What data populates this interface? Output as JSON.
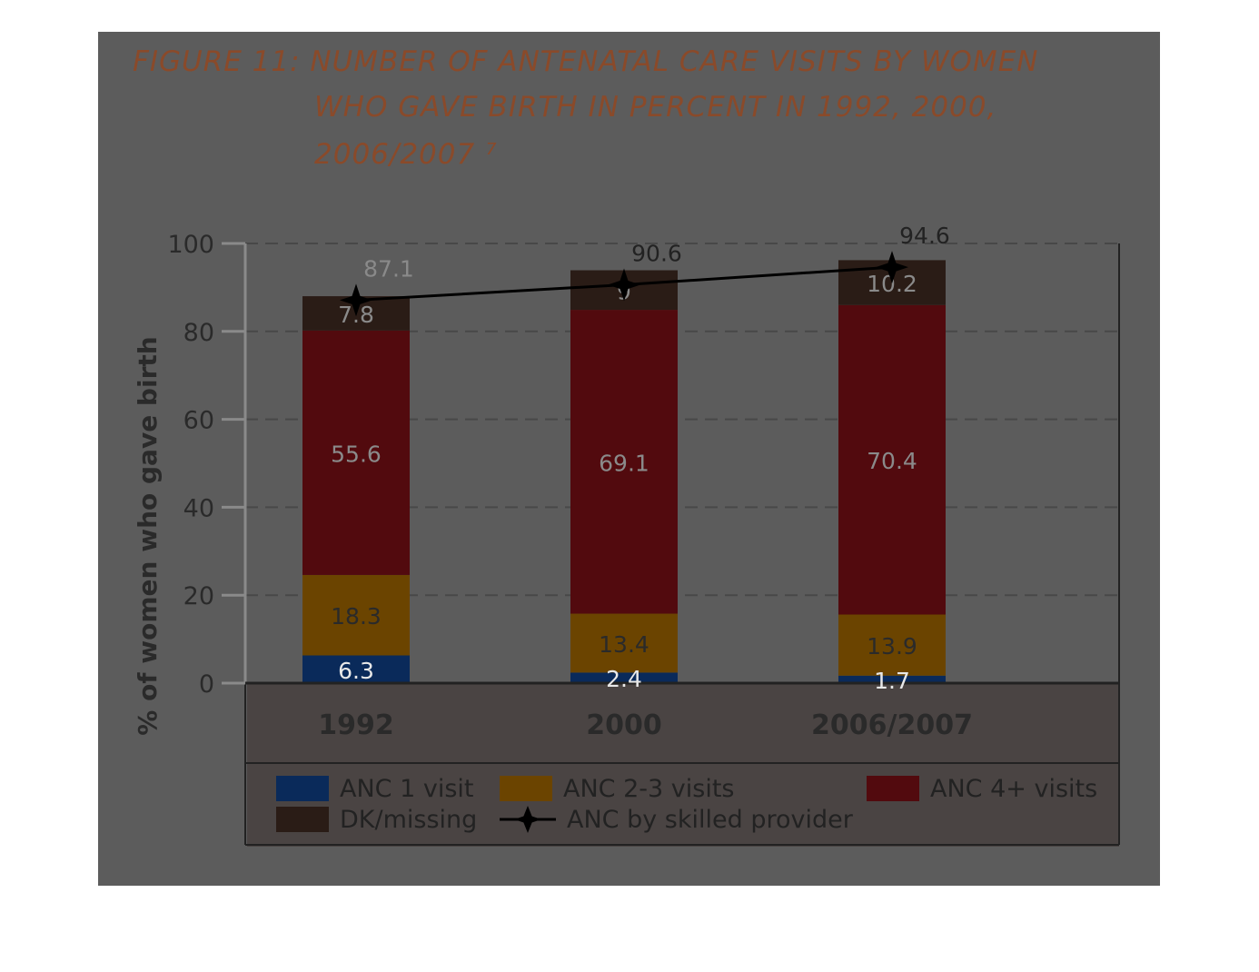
{
  "figure": {
    "title_lines": [
      "FIGURE 11: NUMBER OF ANTENATAL CARE VISITS  BY WOMEN",
      "WHO GAVE BIRTH IN PERCENT IN 1992, 2000,",
      "2006/2007 ⁷"
    ],
    "title_color": "#8a4a2a"
  },
  "chart_data": {
    "type": "bar",
    "stacked": true,
    "categories": [
      "1992",
      "2000",
      "2006/2007"
    ],
    "ylabel": "% of women who gave birth",
    "xlabel": "",
    "ylim": [
      0,
      100
    ],
    "yticks": [
      0,
      20,
      40,
      60,
      80,
      100
    ],
    "grid": true,
    "legend_position": "bottom",
    "series": [
      {
        "name": "ANC 1 visit",
        "values": [
          6.3,
          2.4,
          1.7
        ],
        "color": "#0a2a5a"
      },
      {
        "name": "ANC 2-3 visits",
        "values": [
          18.3,
          13.4,
          13.9
        ],
        "color": "#6b4400"
      },
      {
        "name": "ANC 4+ visits",
        "values": [
          55.6,
          69.1,
          70.4
        ],
        "color": "#520a0e"
      },
      {
        "name": "DK/missing",
        "values": [
          7.8,
          9,
          10.2
        ],
        "color": "#2a1c16"
      }
    ],
    "line_series": {
      "name": "ANC by skilled provider",
      "values": [
        87.1,
        90.6,
        94.6
      ],
      "color": "#000000"
    }
  },
  "legend": {
    "items": [
      {
        "label": "ANC 1 visit",
        "color": "#0a2a5a",
        "kind": "swatch"
      },
      {
        "label": "ANC 2-3 visits",
        "color": "#6b4400",
        "kind": "swatch"
      },
      {
        "label": "ANC 4+ visits",
        "color": "#520a0e",
        "kind": "swatch"
      },
      {
        "label": "DK/missing",
        "color": "#2a1c16",
        "kind": "swatch"
      },
      {
        "label": "ANC by skilled provider",
        "color": "#000000",
        "kind": "line-diamond-icon"
      }
    ]
  }
}
